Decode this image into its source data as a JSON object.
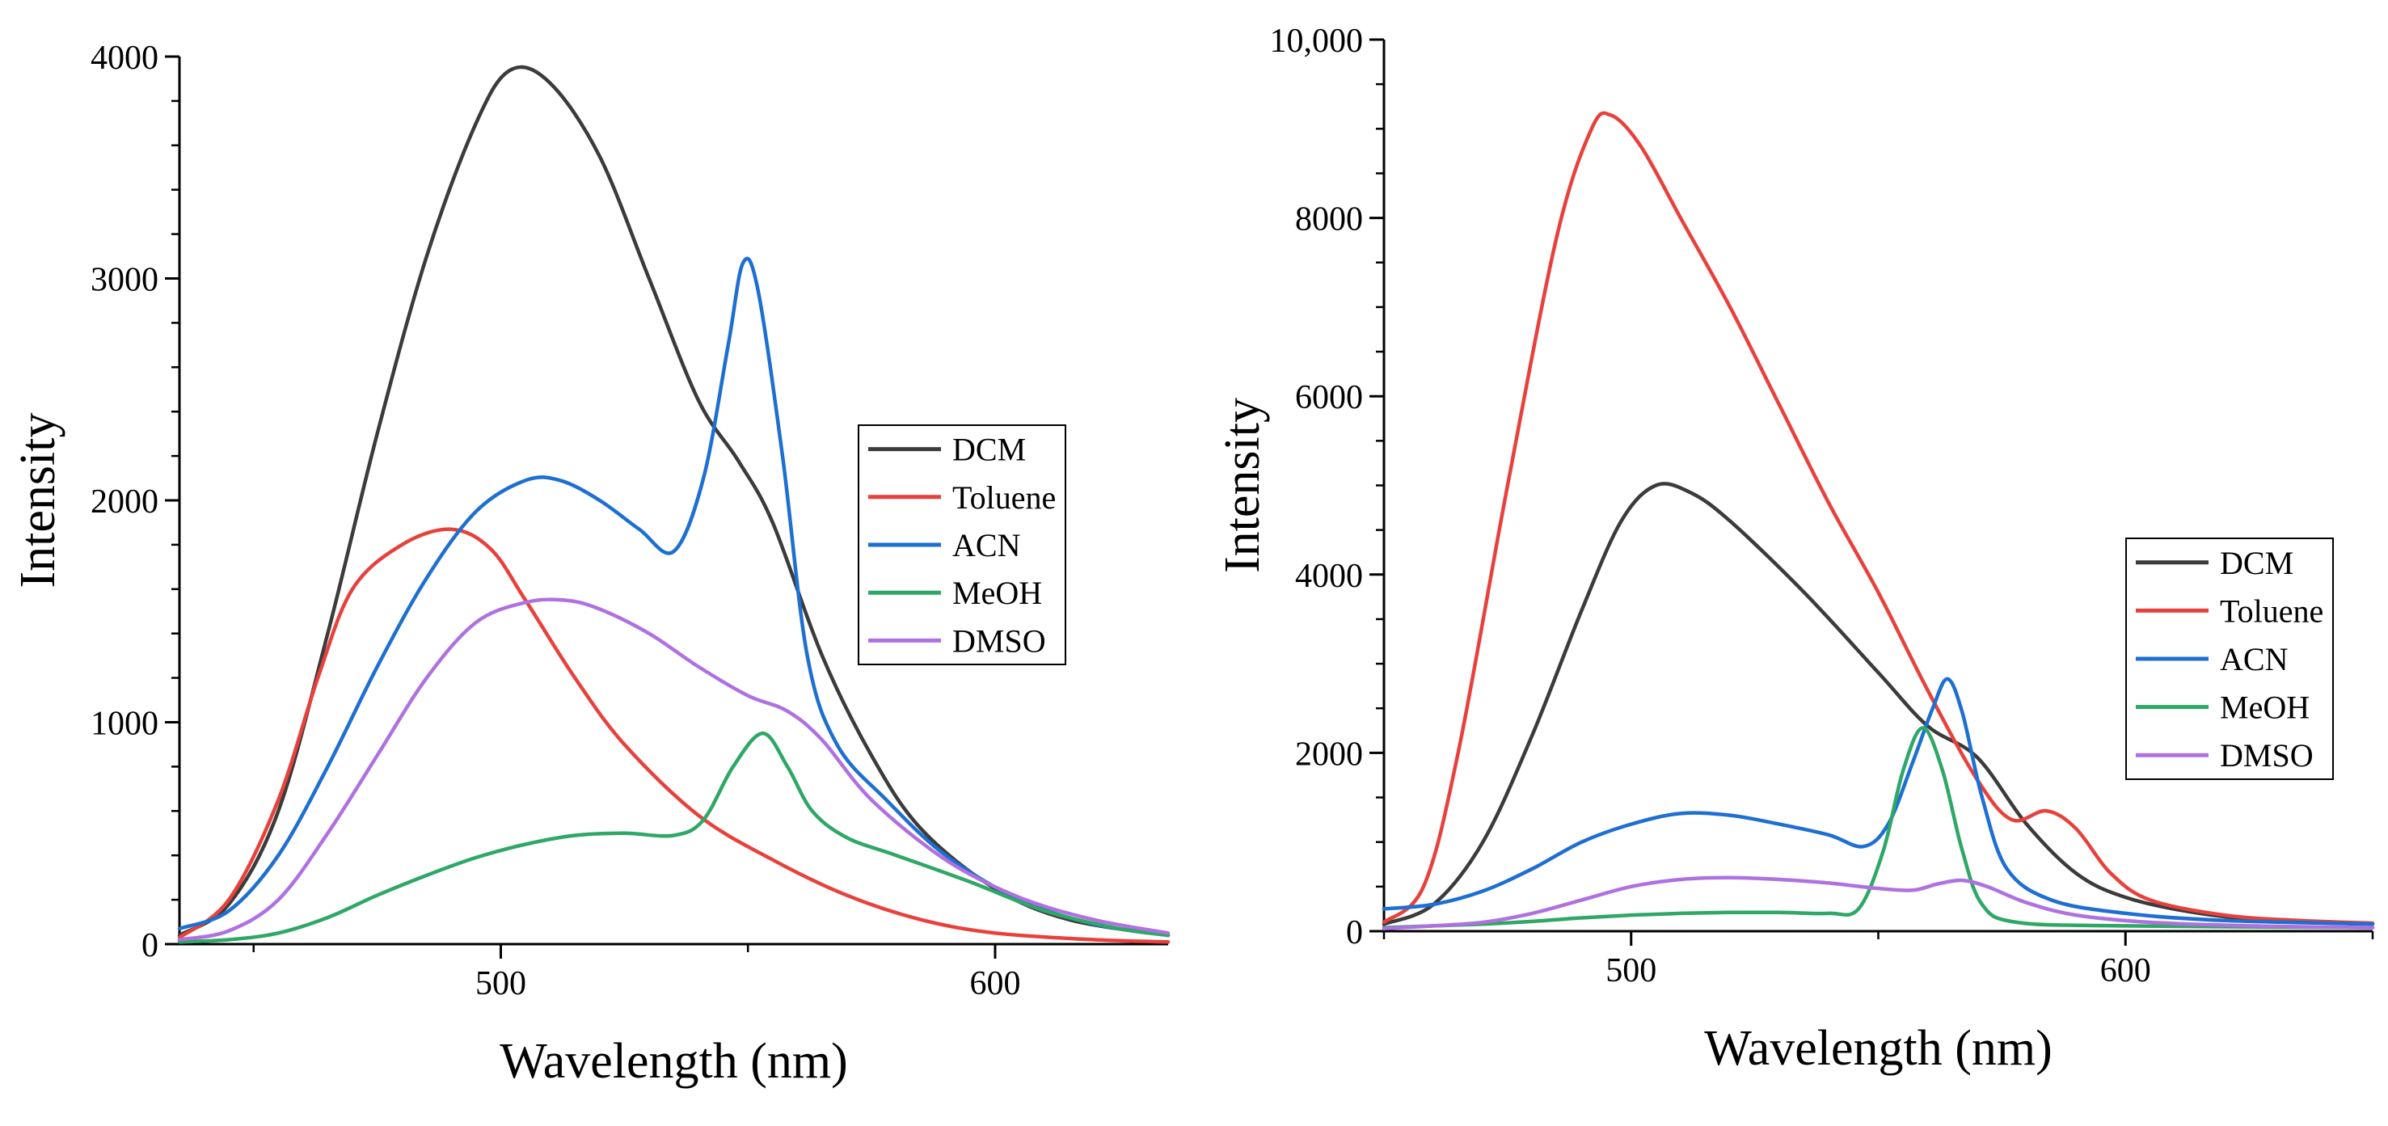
{
  "chart_data": [
    {
      "type": "line",
      "xlabel": "Wavelength (nm)",
      "ylabel": "Intensity",
      "xlim": [
        435,
        635
      ],
      "ylim": [
        0,
        4000
      ],
      "x_ticks": [
        500,
        600
      ],
      "x_tick_labels": [
        "500",
        "600"
      ],
      "y_ticks": [
        0,
        1000,
        2000,
        3000,
        4000
      ],
      "y_tick_labels": [
        "0",
        "1000",
        "2000",
        "3000",
        "4000"
      ],
      "legend_position": "right",
      "series": [
        {
          "name": "DCM",
          "color": "#3b3b3b",
          "points": [
            [
              435,
              40
            ],
            [
              445,
              180
            ],
            [
              455,
              600
            ],
            [
              465,
              1400
            ],
            [
              475,
              2300
            ],
            [
              485,
              3100
            ],
            [
              495,
              3700
            ],
            [
              502,
              3940
            ],
            [
              510,
              3880
            ],
            [
              520,
              3550
            ],
            [
              530,
              3000
            ],
            [
              540,
              2450
            ],
            [
              548,
              2180
            ],
            [
              555,
              1900
            ],
            [
              565,
              1300
            ],
            [
              575,
              850
            ],
            [
              585,
              520
            ],
            [
              600,
              250
            ],
            [
              615,
              110
            ],
            [
              635,
              40
            ]
          ]
        },
        {
          "name": "Toluene",
          "color": "#e8413c",
          "points": [
            [
              435,
              30
            ],
            [
              445,
              200
            ],
            [
              455,
              650
            ],
            [
              463,
              1200
            ],
            [
              470,
              1600
            ],
            [
              480,
              1800
            ],
            [
              490,
              1870
            ],
            [
              498,
              1780
            ],
            [
              505,
              1550
            ],
            [
              515,
              1200
            ],
            [
              525,
              900
            ],
            [
              540,
              580
            ],
            [
              555,
              380
            ],
            [
              570,
              220
            ],
            [
              585,
              110
            ],
            [
              600,
              50
            ],
            [
              620,
              20
            ],
            [
              635,
              10
            ]
          ]
        },
        {
          "name": "ACN",
          "color": "#1d6fd1",
          "points": [
            [
              435,
              70
            ],
            [
              445,
              150
            ],
            [
              455,
              400
            ],
            [
              465,
              800
            ],
            [
              475,
              1250
            ],
            [
              485,
              1650
            ],
            [
              495,
              1950
            ],
            [
              505,
              2090
            ],
            [
              512,
              2090
            ],
            [
              520,
              2000
            ],
            [
              528,
              1870
            ],
            [
              535,
              1770
            ],
            [
              541,
              2100
            ],
            [
              546,
              2700
            ],
            [
              549,
              3070
            ],
            [
              552,
              2950
            ],
            [
              557,
              2200
            ],
            [
              562,
              1300
            ],
            [
              568,
              900
            ],
            [
              578,
              650
            ],
            [
              590,
              400
            ],
            [
              605,
              200
            ],
            [
              620,
              90
            ],
            [
              635,
              40
            ]
          ]
        },
        {
          "name": "MeOH",
          "color": "#2fa766",
          "points": [
            [
              435,
              10
            ],
            [
              445,
              20
            ],
            [
              455,
              50
            ],
            [
              465,
              120
            ],
            [
              475,
              220
            ],
            [
              485,
              310
            ],
            [
              495,
              390
            ],
            [
              505,
              450
            ],
            [
              515,
              490
            ],
            [
              525,
              500
            ],
            [
              535,
              490
            ],
            [
              541,
              560
            ],
            [
              547,
              800
            ],
            [
              553,
              950
            ],
            [
              558,
              800
            ],
            [
              563,
              600
            ],
            [
              570,
              480
            ],
            [
              580,
              400
            ],
            [
              595,
              280
            ],
            [
              610,
              150
            ],
            [
              625,
              70
            ],
            [
              635,
              40
            ]
          ]
        },
        {
          "name": "DMSO",
          "color": "#b071e0",
          "points": [
            [
              435,
              20
            ],
            [
              445,
              60
            ],
            [
              455,
              200
            ],
            [
              465,
              500
            ],
            [
              475,
              850
            ],
            [
              485,
              1200
            ],
            [
              495,
              1450
            ],
            [
              505,
              1540
            ],
            [
              513,
              1550
            ],
            [
              520,
              1510
            ],
            [
              530,
              1400
            ],
            [
              540,
              1250
            ],
            [
              550,
              1120
            ],
            [
              558,
              1050
            ],
            [
              565,
              920
            ],
            [
              575,
              650
            ],
            [
              590,
              380
            ],
            [
              605,
              210
            ],
            [
              620,
              110
            ],
            [
              635,
              50
            ]
          ]
        }
      ]
    },
    {
      "type": "line",
      "xlabel": "Wavelength (nm)",
      "ylabel": "Intensity",
      "xlim": [
        450,
        650
      ],
      "ylim": [
        0,
        10000
      ],
      "x_ticks": [
        500,
        600
      ],
      "x_tick_labels": [
        "500",
        "600"
      ],
      "y_ticks": [
        0,
        2000,
        4000,
        6000,
        8000,
        10000
      ],
      "y_tick_labels": [
        "0",
        "2000",
        "4000",
        "6000",
        "8000",
        "10,000"
      ],
      "legend_position": "right",
      "series": [
        {
          "name": "DCM",
          "color": "#3b3b3b",
          "points": [
            [
              450,
              80
            ],
            [
              460,
              300
            ],
            [
              470,
              1000
            ],
            [
              480,
              2200
            ],
            [
              490,
              3600
            ],
            [
              498,
              4600
            ],
            [
              505,
              5000
            ],
            [
              512,
              4920
            ],
            [
              520,
              4600
            ],
            [
              535,
              3800
            ],
            [
              550,
              2900
            ],
            [
              560,
              2300
            ],
            [
              570,
              1950
            ],
            [
              580,
              1200
            ],
            [
              590,
              650
            ],
            [
              600,
              380
            ],
            [
              615,
              200
            ],
            [
              630,
              120
            ],
            [
              650,
              80
            ]
          ]
        },
        {
          "name": "Toluene",
          "color": "#e8413c",
          "points": [
            [
              450,
              100
            ],
            [
              458,
              500
            ],
            [
              465,
              2000
            ],
            [
              475,
              5000
            ],
            [
              485,
              7800
            ],
            [
              492,
              9000
            ],
            [
              496,
              9150
            ],
            [
              502,
              8800
            ],
            [
              510,
              8000
            ],
            [
              520,
              7000
            ],
            [
              530,
              5900
            ],
            [
              540,
              4800
            ],
            [
              550,
              3800
            ],
            [
              560,
              2700
            ],
            [
              570,
              1700
            ],
            [
              577,
              1250
            ],
            [
              584,
              1350
            ],
            [
              590,
              1150
            ],
            [
              597,
              650
            ],
            [
              605,
              350
            ],
            [
              620,
              180
            ],
            [
              635,
              120
            ],
            [
              650,
              90
            ]
          ]
        },
        {
          "name": "ACN",
          "color": "#1d6fd1",
          "points": [
            [
              450,
              250
            ],
            [
              460,
              300
            ],
            [
              470,
              450
            ],
            [
              480,
              700
            ],
            [
              490,
              1000
            ],
            [
              500,
              1200
            ],
            [
              510,
              1320
            ],
            [
              520,
              1300
            ],
            [
              530,
              1200
            ],
            [
              540,
              1080
            ],
            [
              547,
              950
            ],
            [
              552,
              1200
            ],
            [
              557,
              1900
            ],
            [
              561,
              2500
            ],
            [
              564,
              2830
            ],
            [
              567,
              2450
            ],
            [
              571,
              1500
            ],
            [
              576,
              700
            ],
            [
              585,
              350
            ],
            [
              600,
              200
            ],
            [
              620,
              120
            ],
            [
              650,
              80
            ]
          ]
        },
        {
          "name": "MeOH",
          "color": "#2fa766",
          "points": [
            [
              450,
              40
            ],
            [
              460,
              60
            ],
            [
              470,
              80
            ],
            [
              480,
              110
            ],
            [
              490,
              150
            ],
            [
              500,
              180
            ],
            [
              510,
              200
            ],
            [
              520,
              210
            ],
            [
              530,
              210
            ],
            [
              540,
              200
            ],
            [
              546,
              250
            ],
            [
              551,
              900
            ],
            [
              555,
              1800
            ],
            [
              559,
              2280
            ],
            [
              563,
              1800
            ],
            [
              567,
              900
            ],
            [
              571,
              300
            ],
            [
              578,
              100
            ],
            [
              600,
              60
            ],
            [
              650,
              40
            ]
          ]
        },
        {
          "name": "DMSO",
          "color": "#b071e0",
          "points": [
            [
              450,
              30
            ],
            [
              460,
              60
            ],
            [
              470,
              100
            ],
            [
              480,
              200
            ],
            [
              490,
              350
            ],
            [
              500,
              500
            ],
            [
              510,
              580
            ],
            [
              520,
              600
            ],
            [
              530,
              580
            ],
            [
              540,
              540
            ],
            [
              550,
              480
            ],
            [
              557,
              460
            ],
            [
              562,
              530
            ],
            [
              567,
              570
            ],
            [
              572,
              500
            ],
            [
              580,
              320
            ],
            [
              590,
              180
            ],
            [
              605,
              100
            ],
            [
              625,
              60
            ],
            [
              650,
              40
            ]
          ]
        }
      ]
    }
  ]
}
